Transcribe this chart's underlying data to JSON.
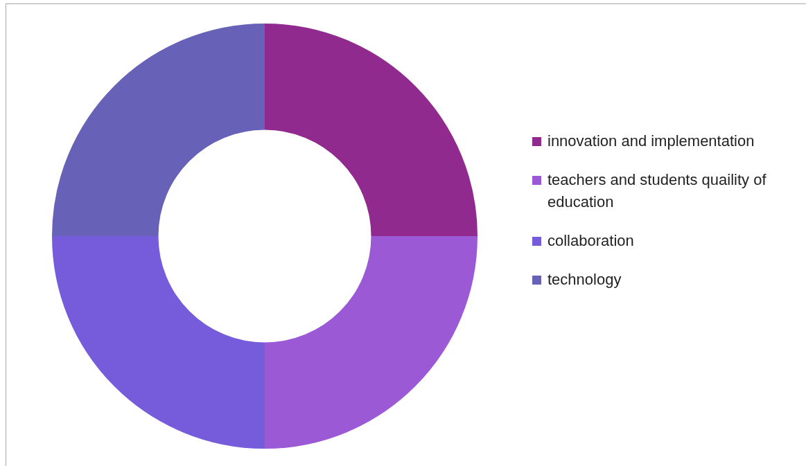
{
  "chart_data": {
    "type": "donut",
    "categories": [
      "innovation and implementation",
      "teachers and students quaility of education",
      "collaboration",
      "technology"
    ],
    "values": [
      25,
      25,
      25,
      25
    ],
    "colors": [
      "#912a8e",
      "#9b59d6",
      "#765cdb",
      "#6761b8"
    ],
    "legend": "right"
  }
}
